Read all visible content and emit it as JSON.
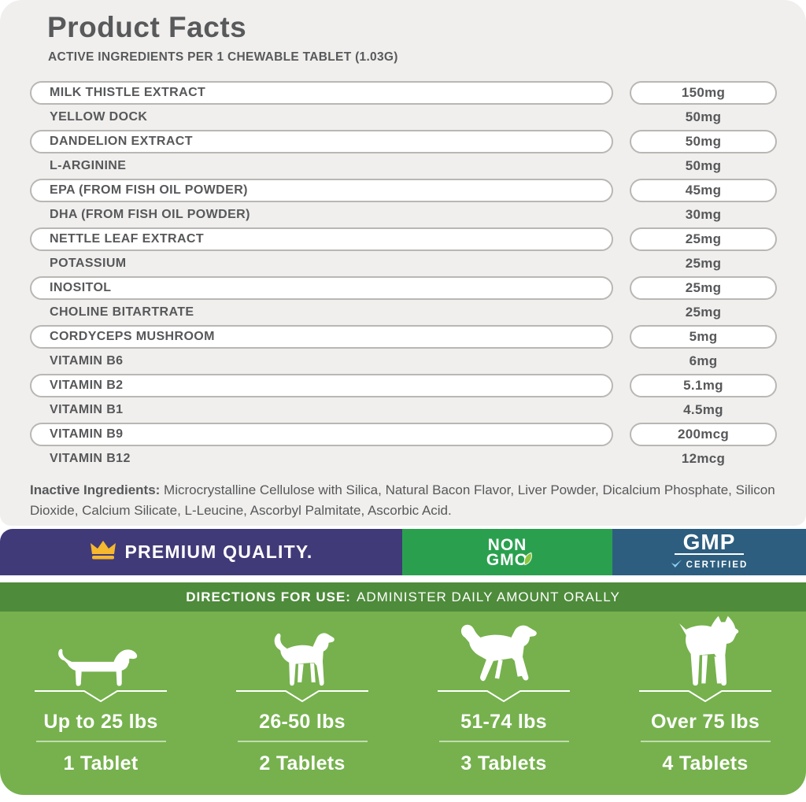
{
  "header": {
    "title": "Product Facts",
    "subtitle": "ACTIVE INGREDIENTS PER 1 CHEWABLE TABLET (1.03G)"
  },
  "ingredients": [
    {
      "name": "MILK THISTLE EXTRACT",
      "amount": "150mg",
      "boxed": true
    },
    {
      "name": "YELLOW DOCK",
      "amount": "50mg",
      "boxed": false
    },
    {
      "name": "DANDELION EXTRACT",
      "amount": "50mg",
      "boxed": true
    },
    {
      "name": "L-ARGININE",
      "amount": "50mg",
      "boxed": false
    },
    {
      "name": "EPA (FROM FISH OIL POWDER)",
      "amount": "45mg",
      "boxed": true
    },
    {
      "name": "DHA (FROM FISH OIL POWDER)",
      "amount": "30mg",
      "boxed": false
    },
    {
      "name": "NETTLE LEAF EXTRACT",
      "amount": "25mg",
      "boxed": true
    },
    {
      "name": "POTASSIUM",
      "amount": "25mg",
      "boxed": false
    },
    {
      "name": "INOSITOL",
      "amount": "25mg",
      "boxed": true
    },
    {
      "name": "CHOLINE BITARTRATE",
      "amount": "25mg",
      "boxed": false
    },
    {
      "name": "CORDYCEPS MUSHROOM",
      "amount": "5mg",
      "boxed": true
    },
    {
      "name": "VITAMIN B6",
      "amount": "6mg",
      "boxed": false
    },
    {
      "name": "VITAMIN B2",
      "amount": "5.1mg",
      "boxed": true
    },
    {
      "name": "VITAMIN B1",
      "amount": "4.5mg",
      "boxed": false
    },
    {
      "name": "VITAMIN B9",
      "amount": "200mcg",
      "boxed": true
    },
    {
      "name": "VITAMIN B12",
      "amount": "12mcg",
      "boxed": false
    }
  ],
  "inactive": {
    "label": "Inactive Ingredients:",
    "text": " Microcrystalline Cellulose with Silica, Natural Bacon Flavor, Liver Powder, Dicalcium Phosphate, Silicon Dioxide, Calcium Silicate, L-Leucine, Ascorbyl Palmitate, Ascorbic Acid."
  },
  "badges": {
    "premium": {
      "label": "PREMIUM QUALITY.",
      "bg_color": "#413a78",
      "crown_color": "#f5b82e",
      "icon": "crown-icon"
    },
    "non_gmo": {
      "line1": "NON",
      "line2": "GMO",
      "bg_color": "#2aa04f",
      "icon": "leaf-icon"
    },
    "gmp": {
      "title": "GMP",
      "subtitle": "CERTIFIED",
      "bg_color": "#2d5e7f",
      "icon": "check-icon"
    }
  },
  "directions": {
    "bar_label": "DIRECTIONS FOR USE:",
    "bar_text": "ADMINISTER DAILY AMOUNT ORALLY",
    "bar_bg_color": "#4e8b3b",
    "section_bg_color": "#76b14d",
    "dosages": [
      {
        "weight": "Up to 25 lbs",
        "tablets": "1 Tablet",
        "dog": "dachshund"
      },
      {
        "weight": "26-50 lbs",
        "tablets": "2 Tablets",
        "dog": "beagle"
      },
      {
        "weight": "51-74 lbs",
        "tablets": "3 Tablets",
        "dog": "retriever"
      },
      {
        "weight": "Over 75 lbs",
        "tablets": "4 Tablets",
        "dog": "boxer"
      }
    ]
  }
}
